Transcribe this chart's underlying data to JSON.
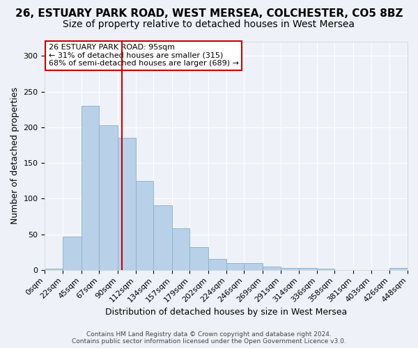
{
  "title": "26, ESTUARY PARK ROAD, WEST MERSEA, COLCHESTER, CO5 8BZ",
  "subtitle": "Size of property relative to detached houses in West Mersea",
  "xlabel": "Distribution of detached houses by size in West Mersea",
  "ylabel": "Number of detached properties",
  "bar_values": [
    2,
    47,
    230,
    203,
    185,
    125,
    91,
    58,
    32,
    15,
    10,
    10,
    5,
    3,
    3,
    2,
    0,
    0,
    0,
    3
  ],
  "bin_edges": [
    0,
    22,
    45,
    67,
    90,
    112,
    134,
    157,
    179,
    202,
    224,
    246,
    269,
    291,
    314,
    336,
    358,
    381,
    403,
    426,
    448
  ],
  "tick_labels": [
    "0sqm",
    "22sqm",
    "45sqm",
    "67sqm",
    "90sqm",
    "112sqm",
    "134sqm",
    "157sqm",
    "179sqm",
    "202sqm",
    "224sqm",
    "246sqm",
    "269sqm",
    "291sqm",
    "314sqm",
    "336sqm",
    "358sqm",
    "381sqm",
    "403sqm",
    "426sqm",
    "448sqm"
  ],
  "bar_color": "#b8d0e8",
  "bar_edge_color": "#8ab0d0",
  "red_line_x": 95,
  "annotation_text": "26 ESTUARY PARK ROAD: 95sqm\n← 31% of detached houses are smaller (315)\n68% of semi-detached houses are larger (689) →",
  "annotation_box_color": "#ffffff",
  "annotation_box_edge_color": "#cc0000",
  "footer_text": "Contains HM Land Registry data © Crown copyright and database right 2024.\nContains public sector information licensed under the Open Government Licence v3.0.",
  "ylim": [
    0,
    320
  ],
  "title_fontsize": 11,
  "subtitle_fontsize": 10,
  "xlabel_fontsize": 9,
  "ylabel_fontsize": 9,
  "tick_fontsize": 8,
  "background_color": "#eef2f8",
  "grid_color": "#ffffff"
}
